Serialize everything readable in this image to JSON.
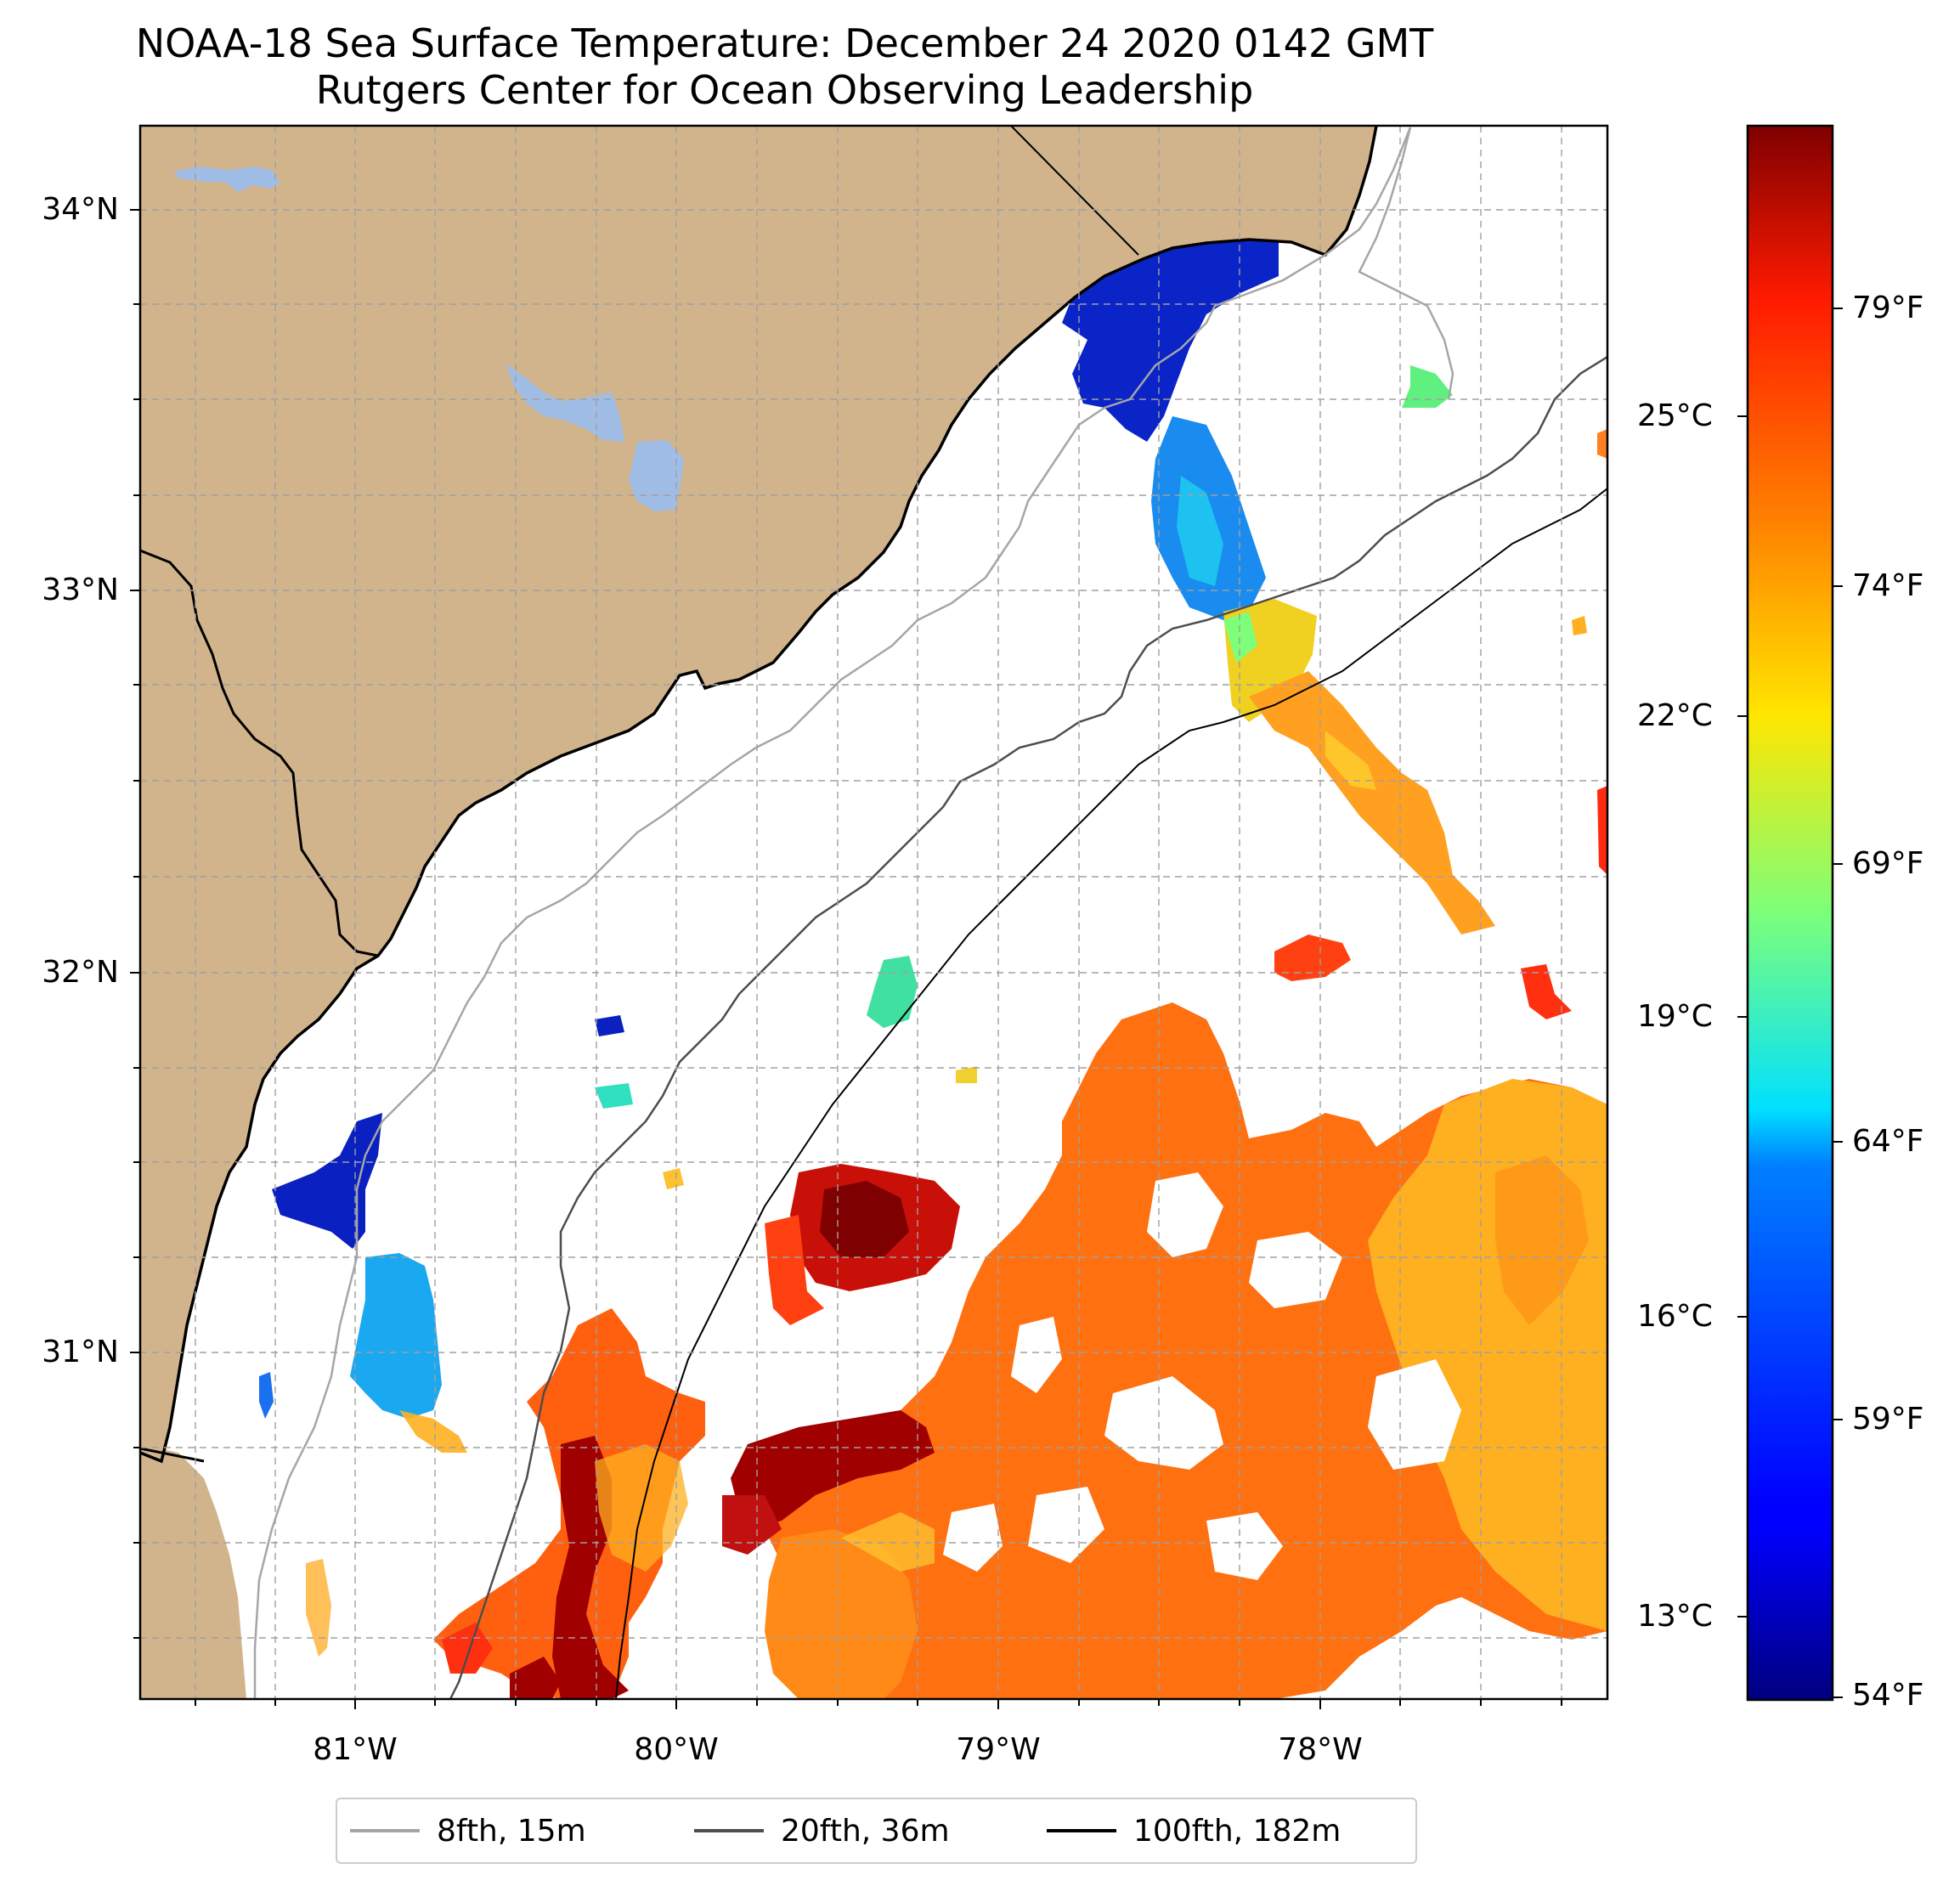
{
  "title": {
    "line1": "NOAA-18 Sea Surface Temperature: December 24 2020 0142 GMT",
    "line2": "Rutgers Center for Ocean Observing Leadership"
  },
  "map": {
    "lat_ticks": [
      "34°N",
      "33°N",
      "32°N",
      "31°N"
    ],
    "lon_ticks": [
      "81°W",
      "80°W",
      "79°W",
      "78°W"
    ],
    "gridlines": true,
    "colors": {
      "land": "#d2b48c",
      "lake": "#a0bde6",
      "coast": "#000000",
      "grid": "#a0a0a0"
    }
  },
  "colorbar": {
    "colormap": "jet",
    "celsius_ticks": [
      "25°C",
      "22°C",
      "19°C",
      "16°C",
      "13°C"
    ],
    "fahrenheit_ticks": [
      "79°F",
      "74°F",
      "69°F",
      "64°F",
      "59°F",
      "54°F"
    ]
  },
  "legend": {
    "items": [
      {
        "label": "8fth, 15m",
        "color": "#a6a6a6"
      },
      {
        "label": "20fth, 36m",
        "color": "#4d4d4d"
      },
      {
        "label": "100fth, 182m",
        "color": "#000000"
      }
    ]
  }
}
